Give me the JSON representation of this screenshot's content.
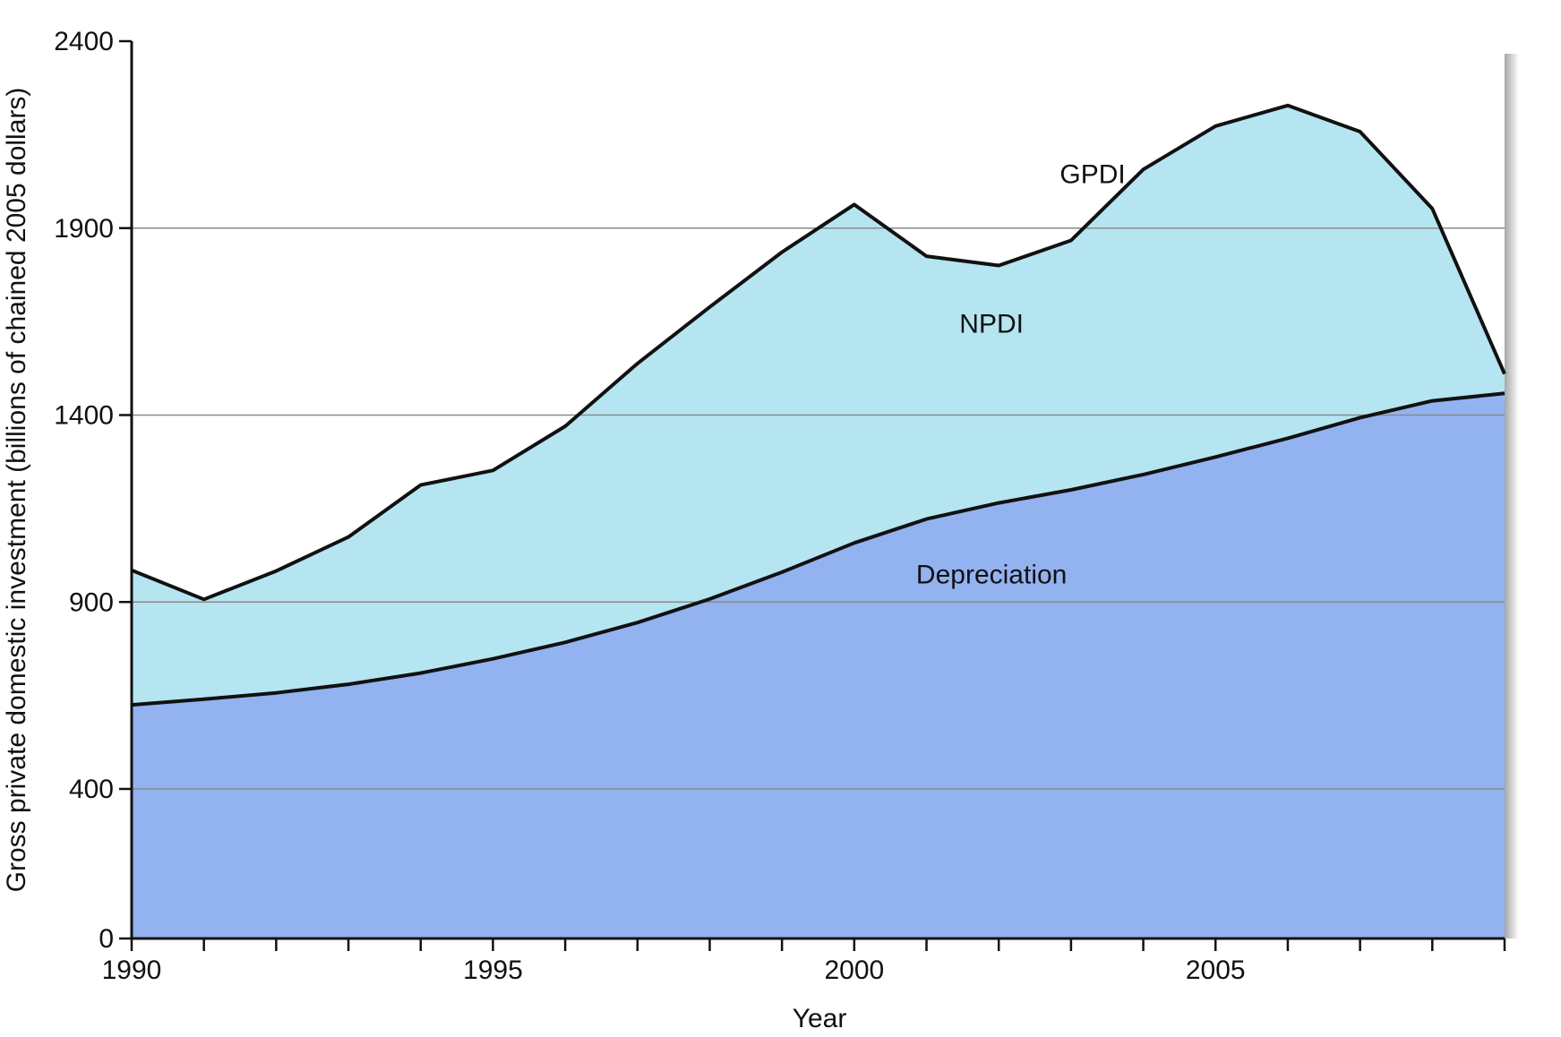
{
  "chart_data": {
    "type": "area",
    "title": "",
    "xlabel": "Year",
    "ylabel": "Gross private domestic investment (billions of chained 2005 dollars)",
    "xlim": [
      1990,
      2009
    ],
    "ylim": [
      0,
      2400
    ],
    "x_ticks": [
      1990,
      1995,
      2000,
      2005
    ],
    "y_ticks": [
      0,
      400,
      900,
      1400,
      1900,
      2400
    ],
    "grid": "horizontal",
    "x": [
      1990,
      1991,
      1992,
      1993,
      1994,
      1995,
      1996,
      1997,
      1998,
      1999,
      2000,
      2001,
      2002,
      2003,
      2004,
      2005,
      2006,
      2007,
      2008,
      2009
    ],
    "series": [
      {
        "name": "Depreciation",
        "color": "#93b2f0",
        "values": [
          625,
          640,
          657,
          680,
          710,
          748,
          792,
          845,
          908,
          980,
          1058,
          1122,
          1165,
          1200,
          1241,
          1288,
          1338,
          1393,
          1438,
          1458
        ]
      },
      {
        "name": "GPDI",
        "color": "#b5e5f1",
        "values": [
          985,
          907,
          983,
          1074,
          1213,
          1252,
          1370,
          1538,
          1689,
          1836,
          1963,
          1825,
          1800,
          1867,
          2057,
          2173,
          2228,
          2158,
          1952,
          1510
        ]
      }
    ],
    "annotations": [
      {
        "text": "GPDI",
        "x": 2003.3,
        "y": 2020
      },
      {
        "text": "NPDI",
        "x": 2001.9,
        "y": 1620
      },
      {
        "text": "Depreciation",
        "x": 2001.9,
        "y": 950
      }
    ]
  }
}
